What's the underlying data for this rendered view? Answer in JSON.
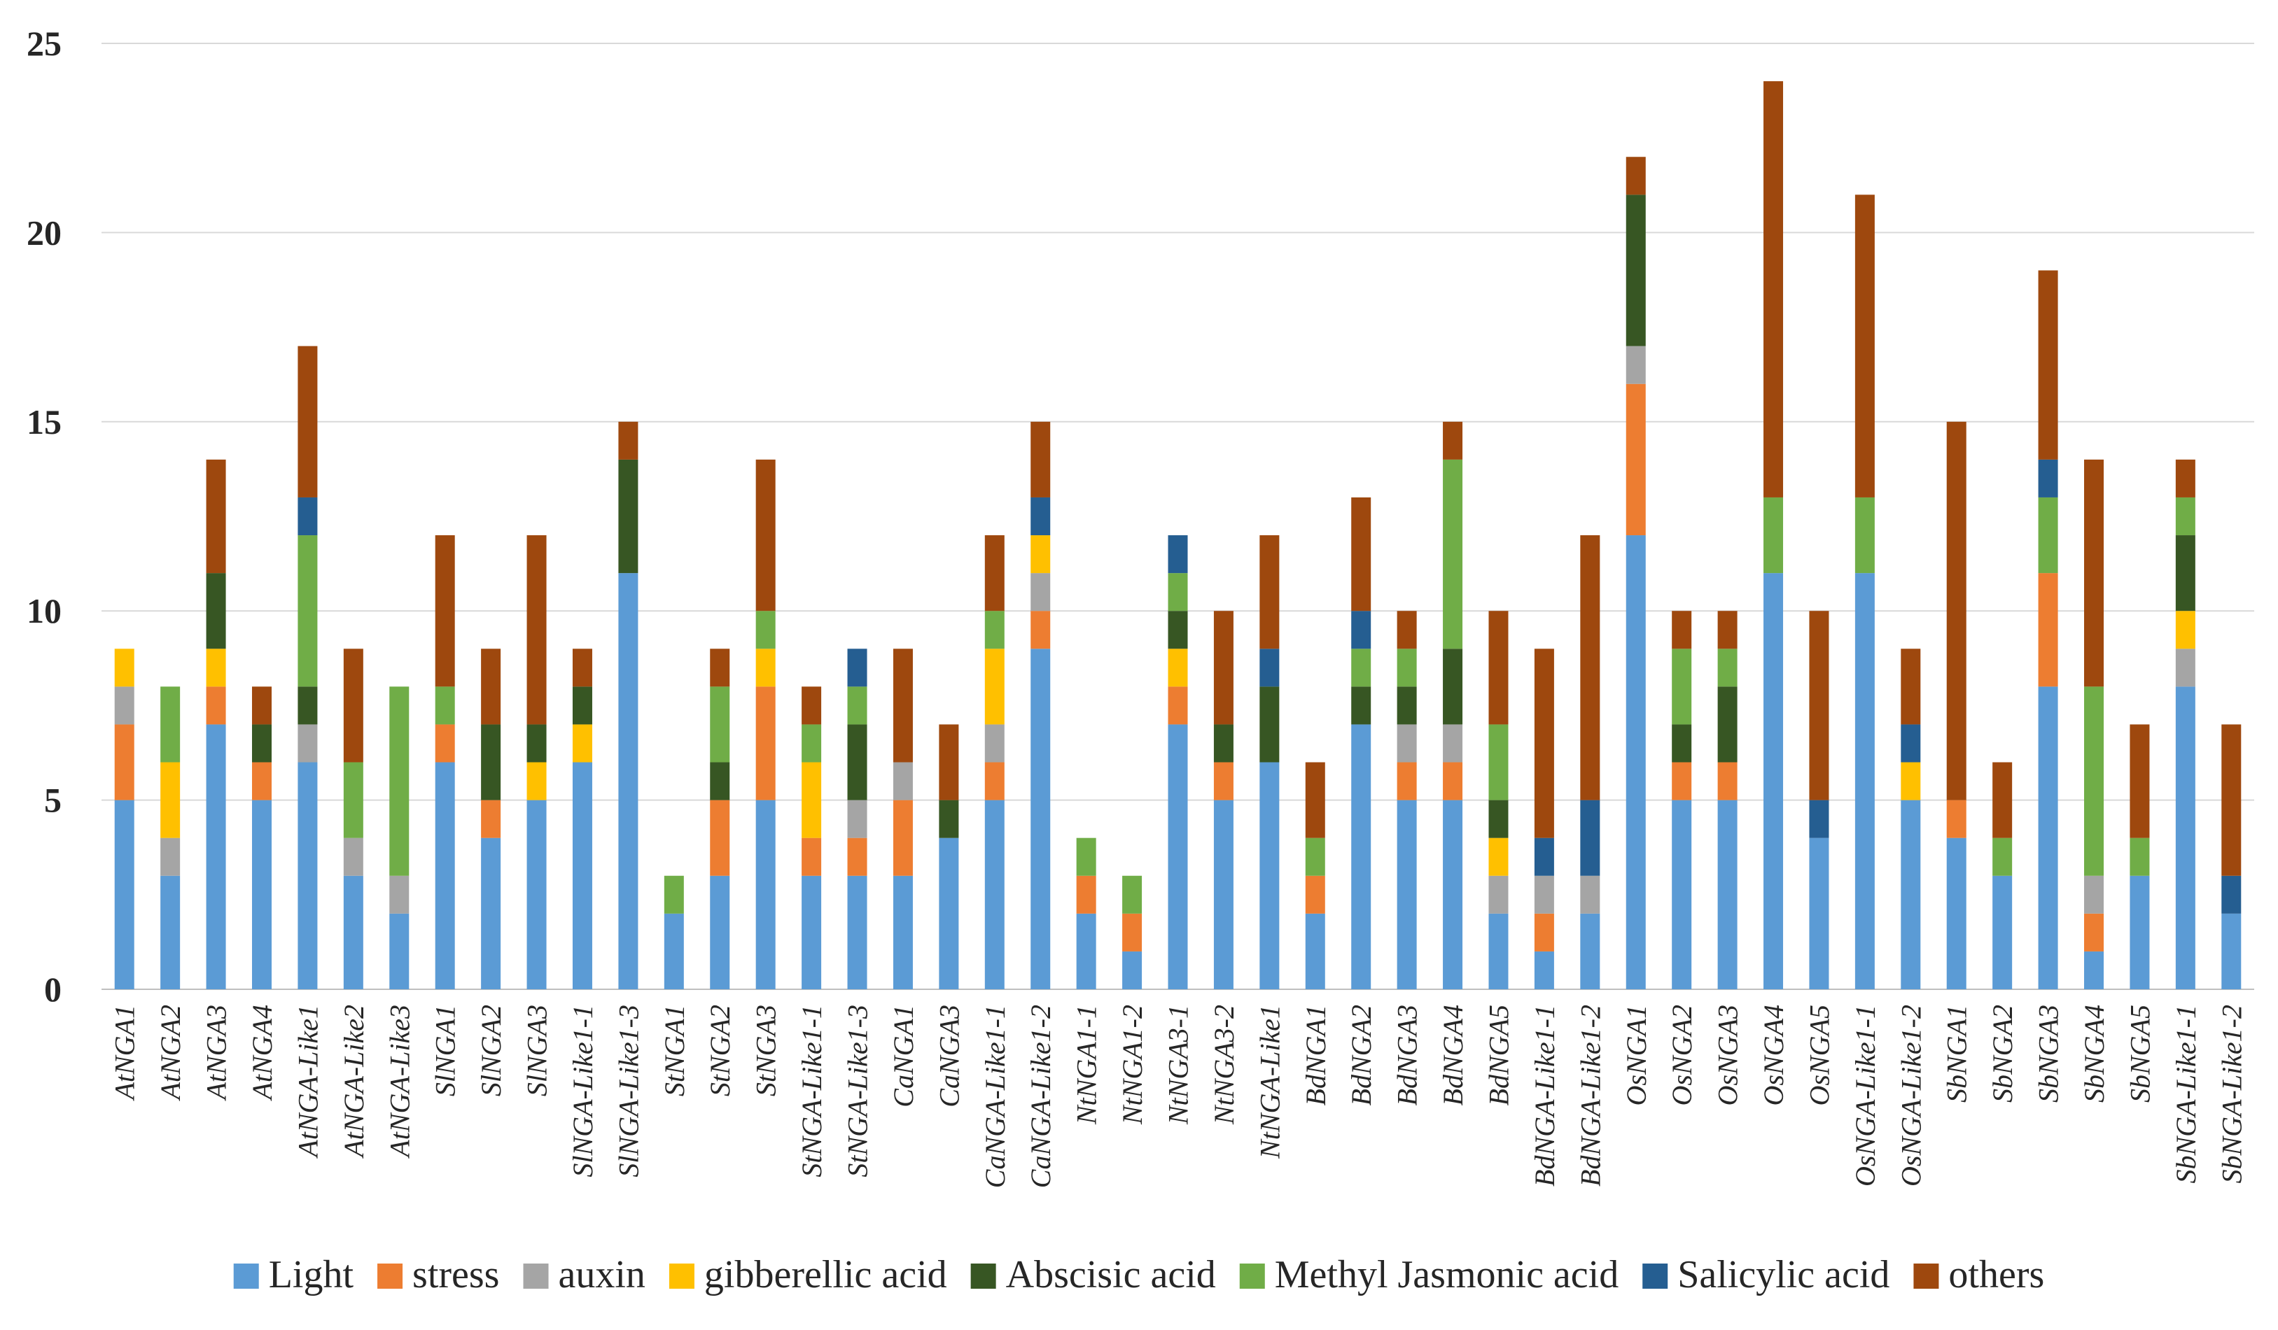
{
  "chart_data": {
    "type": "bar",
    "stacked": true,
    "title": "",
    "xlabel": "",
    "ylabel": "",
    "ylim": [
      0,
      25
    ],
    "yticks": [
      0,
      5,
      10,
      15,
      20,
      25
    ],
    "grid": true,
    "legend_position": "bottom",
    "categories": [
      "AtNGA1",
      "AtNGA2",
      "AtNGA3",
      "AtNGA4",
      "AtNGA-Like1",
      "AtNGA-Like2",
      "AtNGA-Like3",
      "SlNGA1",
      "SlNGA2",
      "SlNGA3",
      "SlNGA-Like1-1",
      "SlNGA-Like1-3",
      "StNGA1",
      "StNGA2",
      "StNGA3",
      "StNGA-Like1-1",
      "StNGA-Like1-3",
      "CaNGA1",
      "CaNGA3",
      "CaNGA-Like1-1",
      "CaNGA-Like1-2",
      "NtNGA1-1",
      "NtNGA1-2",
      "NtNGA3-1",
      "NtNGA3-2",
      "NtNGA-Like1",
      "BdNGA1",
      "BdNGA2",
      "BdNGA3",
      "BdNGA4",
      "BdNGA5",
      "BdNGA-Like1-1",
      "BdNGA-Like1-2",
      "OsNGA1",
      "OsNGA2",
      "OsNGA3",
      "OsNGA4",
      "OsNGA5",
      "OsNGA-Like1-1",
      "OsNGA-Like1-2",
      "SbNGA1",
      "SbNGA2",
      "SbNGA3",
      "SbNGA4",
      "SbNGA5",
      "SbNGA-Like1-1",
      "SbNGA-Like1-2"
    ],
    "series": [
      {
        "name": "Light",
        "color": "#5b9bd5",
        "values": [
          5,
          3,
          7,
          5,
          6,
          3,
          2,
          6,
          4,
          5,
          6,
          11,
          2,
          3,
          5,
          3,
          3,
          3,
          4,
          5,
          9,
          2,
          1,
          7,
          5,
          6,
          2,
          7,
          5,
          5,
          2,
          1,
          2,
          12,
          5,
          5,
          11,
          4,
          11,
          5,
          4,
          3,
          8,
          1,
          3,
          8,
          2
        ]
      },
      {
        "name": "stress",
        "color": "#ed7d31",
        "values": [
          2,
          0,
          1,
          1,
          0,
          0,
          0,
          1,
          1,
          0,
          0,
          0,
          0,
          2,
          3,
          1,
          1,
          2,
          0,
          1,
          1,
          1,
          1,
          1,
          1,
          0,
          1,
          0,
          1,
          1,
          0,
          1,
          0,
          4,
          1,
          1,
          0,
          0,
          0,
          0,
          1,
          0,
          3,
          1,
          0,
          0,
          0
        ]
      },
      {
        "name": "auxin",
        "color": "#a5a5a5",
        "values": [
          1,
          1,
          0,
          0,
          1,
          1,
          1,
          0,
          0,
          0,
          0,
          0,
          0,
          0,
          0,
          0,
          1,
          1,
          0,
          1,
          1,
          0,
          0,
          0,
          0,
          0,
          0,
          0,
          1,
          1,
          1,
          1,
          1,
          1,
          0,
          0,
          0,
          0,
          0,
          0,
          0,
          0,
          0,
          1,
          0,
          1,
          0
        ]
      },
      {
        "name": "gibberellic acid",
        "color": "#ffc000",
        "values": [
          1,
          2,
          1,
          0,
          0,
          0,
          0,
          0,
          0,
          1,
          1,
          0,
          0,
          0,
          1,
          2,
          0,
          0,
          0,
          2,
          1,
          0,
          0,
          1,
          0,
          0,
          0,
          0,
          0,
          0,
          1,
          0,
          0,
          0,
          0,
          0,
          0,
          0,
          0,
          1,
          0,
          0,
          0,
          0,
          0,
          1,
          0
        ]
      },
      {
        "name": "Abscisic acid",
        "color": "#375623",
        "values": [
          0,
          0,
          2,
          1,
          1,
          0,
          0,
          0,
          2,
          1,
          1,
          3,
          0,
          1,
          0,
          0,
          2,
          0,
          1,
          0,
          0,
          0,
          0,
          1,
          1,
          2,
          0,
          1,
          1,
          2,
          1,
          0,
          0,
          4,
          1,
          2,
          0,
          0,
          0,
          0,
          0,
          0,
          0,
          0,
          0,
          2,
          0
        ]
      },
      {
        "name": "Methyl Jasmonic acid",
        "color": "#70ad47",
        "values": [
          0,
          2,
          0,
          0,
          4,
          2,
          5,
          1,
          0,
          0,
          0,
          0,
          1,
          2,
          1,
          1,
          1,
          0,
          0,
          1,
          0,
          1,
          1,
          1,
          0,
          0,
          1,
          1,
          1,
          5,
          2,
          0,
          0,
          0,
          2,
          1,
          2,
          0,
          2,
          0,
          0,
          1,
          2,
          5,
          1,
          1,
          0
        ]
      },
      {
        "name": "Salicylic acid",
        "color": "#255e91",
        "values": [
          0,
          0,
          0,
          0,
          1,
          0,
          0,
          0,
          0,
          0,
          0,
          0,
          0,
          0,
          0,
          0,
          1,
          0,
          0,
          0,
          1,
          0,
          0,
          1,
          0,
          1,
          0,
          1,
          0,
          0,
          0,
          1,
          2,
          0,
          0,
          0,
          0,
          1,
          0,
          1,
          0,
          0,
          1,
          0,
          0,
          0,
          1
        ]
      },
      {
        "name": "others",
        "color": "#9e480e",
        "values": [
          0,
          0,
          3,
          1,
          4,
          3,
          0,
          4,
          2,
          5,
          1,
          1,
          0,
          1,
          4,
          1,
          0,
          3,
          2,
          2,
          2,
          0,
          0,
          0,
          3,
          3,
          2,
          3,
          1,
          1,
          3,
          5,
          7,
          1,
          1,
          1,
          11,
          5,
          8,
          2,
          10,
          2,
          5,
          6,
          3,
          1,
          4
        ]
      }
    ]
  }
}
